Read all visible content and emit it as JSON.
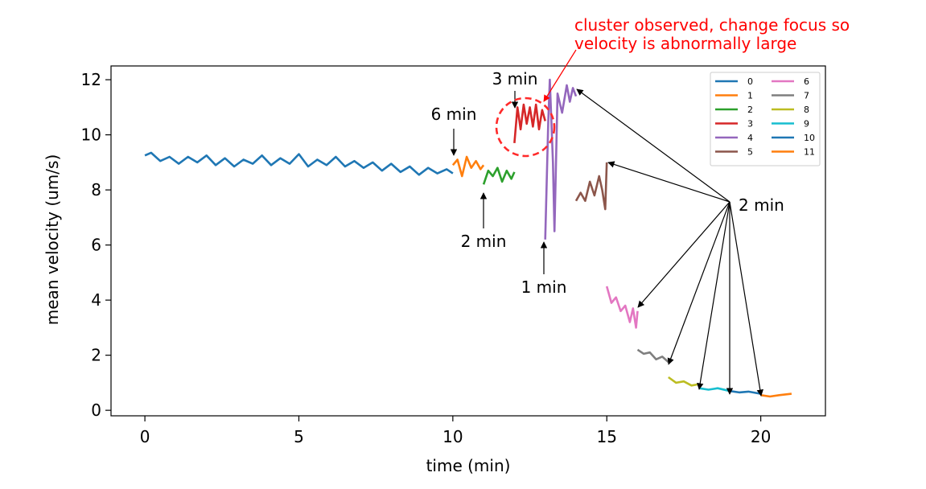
{
  "chart_data": {
    "type": "line",
    "xlabel": "time (min)",
    "ylabel": "mean velocity (um/s)",
    "xlim": [
      -1.1,
      22.1
    ],
    "ylim": [
      -0.2,
      12.5
    ],
    "xticks": [
      0,
      5,
      10,
      15,
      20
    ],
    "yticks": [
      0,
      2,
      4,
      6,
      8,
      10,
      12
    ],
    "grid": false,
    "legend_position": "top-right",
    "series": [
      {
        "name": "0",
        "color": "#1f77b4",
        "points": [
          [
            0,
            9.25
          ],
          [
            0.2,
            9.35
          ],
          [
            0.5,
            9.05
          ],
          [
            0.8,
            9.2
          ],
          [
            1.1,
            8.95
          ],
          [
            1.4,
            9.2
          ],
          [
            1.7,
            9.0
          ],
          [
            2.0,
            9.25
          ],
          [
            2.3,
            8.9
          ],
          [
            2.6,
            9.15
          ],
          [
            2.9,
            8.85
          ],
          [
            3.2,
            9.1
          ],
          [
            3.5,
            8.95
          ],
          [
            3.8,
            9.25
          ],
          [
            4.1,
            8.9
          ],
          [
            4.4,
            9.15
          ],
          [
            4.7,
            8.95
          ],
          [
            5.0,
            9.3
          ],
          [
            5.3,
            8.85
          ],
          [
            5.6,
            9.1
          ],
          [
            5.9,
            8.9
          ],
          [
            6.2,
            9.2
          ],
          [
            6.5,
            8.85
          ],
          [
            6.8,
            9.05
          ],
          [
            7.1,
            8.8
          ],
          [
            7.4,
            9.0
          ],
          [
            7.7,
            8.7
          ],
          [
            8.0,
            8.95
          ],
          [
            8.3,
            8.65
          ],
          [
            8.6,
            8.85
          ],
          [
            8.9,
            8.55
          ],
          [
            9.2,
            8.8
          ],
          [
            9.5,
            8.6
          ],
          [
            9.8,
            8.75
          ],
          [
            10.0,
            8.6
          ]
        ]
      },
      {
        "name": "1",
        "color": "#ff7f0e",
        "points": [
          [
            10.0,
            8.9
          ],
          [
            10.15,
            9.1
          ],
          [
            10.3,
            8.5
          ],
          [
            10.45,
            9.2
          ],
          [
            10.6,
            8.8
          ],
          [
            10.75,
            9.05
          ],
          [
            10.9,
            8.75
          ],
          [
            11.0,
            8.9
          ]
        ]
      },
      {
        "name": "2",
        "color": "#2ca02c",
        "points": [
          [
            11.0,
            8.2
          ],
          [
            11.15,
            8.7
          ],
          [
            11.3,
            8.5
          ],
          [
            11.45,
            8.8
          ],
          [
            11.6,
            8.3
          ],
          [
            11.75,
            8.7
          ],
          [
            11.9,
            8.4
          ],
          [
            12.0,
            8.65
          ]
        ]
      },
      {
        "name": "3",
        "color": "#d62728",
        "points": [
          [
            12.0,
            9.7
          ],
          [
            12.1,
            11.0
          ],
          [
            12.2,
            10.2
          ],
          [
            12.3,
            11.1
          ],
          [
            12.4,
            10.4
          ],
          [
            12.5,
            11.0
          ],
          [
            12.6,
            10.3
          ],
          [
            12.7,
            11.1
          ],
          [
            12.8,
            10.2
          ],
          [
            12.9,
            10.9
          ],
          [
            13.0,
            10.5
          ]
        ]
      },
      {
        "name": "4",
        "color": "#9467bd",
        "points": [
          [
            13.0,
            6.2
          ],
          [
            13.1,
            10.5
          ],
          [
            13.15,
            12.0
          ],
          [
            13.25,
            9.0
          ],
          [
            13.3,
            6.5
          ],
          [
            13.4,
            11.5
          ],
          [
            13.55,
            10.8
          ],
          [
            13.7,
            11.8
          ],
          [
            13.8,
            11.2
          ],
          [
            13.9,
            11.7
          ],
          [
            14.0,
            11.4
          ]
        ]
      },
      {
        "name": "5",
        "color": "#8c564b",
        "points": [
          [
            14.0,
            7.6
          ],
          [
            14.15,
            7.9
          ],
          [
            14.3,
            7.6
          ],
          [
            14.45,
            8.3
          ],
          [
            14.6,
            7.8
          ],
          [
            14.75,
            8.5
          ],
          [
            14.85,
            8.0
          ],
          [
            14.95,
            7.3
          ],
          [
            15.0,
            9.0
          ]
        ]
      },
      {
        "name": "6",
        "color": "#e377c2",
        "points": [
          [
            15.0,
            4.5
          ],
          [
            15.15,
            3.9
          ],
          [
            15.3,
            4.1
          ],
          [
            15.45,
            3.6
          ],
          [
            15.6,
            3.8
          ],
          [
            15.75,
            3.2
          ],
          [
            15.85,
            3.7
          ],
          [
            15.95,
            3.0
          ],
          [
            16.0,
            3.6
          ]
        ]
      },
      {
        "name": "7",
        "color": "#7f7f7f",
        "points": [
          [
            16.0,
            2.2
          ],
          [
            16.2,
            2.05
          ],
          [
            16.4,
            2.1
          ],
          [
            16.6,
            1.85
          ],
          [
            16.8,
            1.95
          ],
          [
            17.0,
            1.75
          ]
        ]
      },
      {
        "name": "8",
        "color": "#bcbd22",
        "points": [
          [
            17.0,
            1.2
          ],
          [
            17.25,
            1.0
          ],
          [
            17.5,
            1.05
          ],
          [
            17.75,
            0.9
          ],
          [
            18.0,
            0.95
          ]
        ]
      },
      {
        "name": "9",
        "color": "#17becf",
        "points": [
          [
            18.0,
            0.8
          ],
          [
            18.3,
            0.75
          ],
          [
            18.6,
            0.8
          ],
          [
            19.0,
            0.7
          ]
        ]
      },
      {
        "name": "10",
        "color": "#1f77b4",
        "points": [
          [
            19.0,
            0.7
          ],
          [
            19.3,
            0.65
          ],
          [
            19.6,
            0.68
          ],
          [
            20.0,
            0.6
          ]
        ]
      },
      {
        "name": "11",
        "color": "#ff7f0e",
        "points": [
          [
            20.0,
            0.55
          ],
          [
            20.3,
            0.5
          ],
          [
            20.6,
            0.55
          ],
          [
            21.0,
            0.6
          ]
        ]
      }
    ],
    "annotations": [
      {
        "text": "6 min",
        "x": 10.0,
        "y": 9.1
      },
      {
        "text": "2 min",
        "x": 11.0,
        "y": 8.2
      },
      {
        "text": "3 min",
        "x": 12.0,
        "y": 11.0
      },
      {
        "text": "1 min",
        "x": 13.0,
        "y": 6.2
      },
      {
        "text": "2 min",
        "x": 19.0,
        "y": 7.7
      },
      {
        "text": "cluster observed, change focus so velocity is abnormally large",
        "x": 12.6,
        "y": 10.4
      }
    ]
  }
}
